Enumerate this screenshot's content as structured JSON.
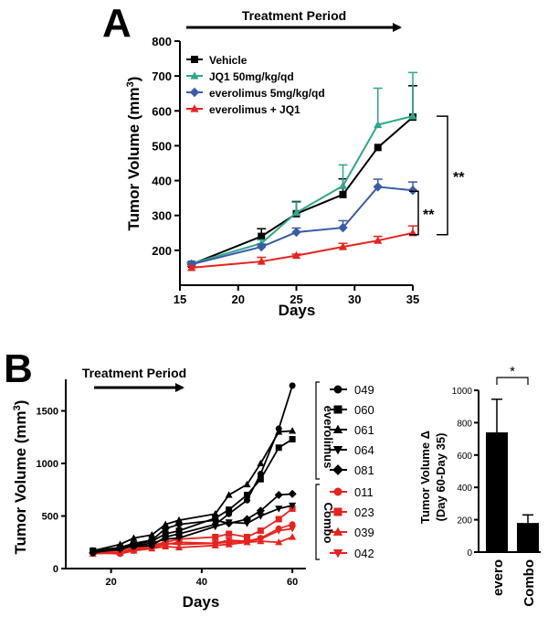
{
  "panel_labels": {
    "a": "A",
    "b": "B"
  },
  "colors": {
    "vehicle": "#000000",
    "jq1": "#2ea88a",
    "everolimus": "#3a5ca8",
    "combo": "#e8231e"
  },
  "chart_data": [
    {
      "type": "line",
      "panel": "A",
      "title": "",
      "arrow_label": "Treatment Period",
      "xlabel": "Days",
      "ylabel_main": "Tumor Volume (mm",
      "ylabel_sup": "3",
      "ylabel_tail": ")",
      "xlim": [
        15,
        35
      ],
      "ylim": [
        100,
        800
      ],
      "xticks": [
        15,
        20,
        25,
        30,
        35
      ],
      "yticks": [
        200,
        300,
        400,
        500,
        600,
        700,
        800
      ],
      "x": [
        16,
        22,
        25,
        29,
        32,
        35
      ],
      "series": [
        {
          "name": "Vehicle",
          "color": "#000000",
          "marker": "square",
          "values": [
            160,
            240,
            305,
            360,
            495,
            582
          ],
          "errors": [
            5,
            22,
            35,
            45,
            0,
            90
          ]
        },
        {
          "name": "JQ1 50mg/kg/qd",
          "color": "#2ea88a",
          "marker": "triangle",
          "values": [
            162,
            220,
            308,
            385,
            560,
            585
          ],
          "errors": [
            5,
            10,
            30,
            60,
            105,
            125
          ]
        },
        {
          "name": "everolimus 5mg/kg/qd",
          "color": "#3a5ca8",
          "marker": "diamond",
          "values": [
            160,
            210,
            252,
            265,
            382,
            372
          ],
          "errors": [
            4,
            8,
            12,
            20,
            22,
            24
          ]
        },
        {
          "name": "everolimus + JQ1",
          "color": "#e8231e",
          "marker": "triangle",
          "values": [
            150,
            168,
            185,
            210,
            228,
            250
          ],
          "errors": [
            4,
            12,
            4,
            10,
            12,
            20
          ]
        }
      ],
      "legend": "top-left",
      "significance": [
        {
          "label": "**",
          "from": 582,
          "to": 250
        },
        {
          "label": "**",
          "from": 372,
          "to": 250
        }
      ]
    },
    {
      "type": "line",
      "panel": "B",
      "title": "",
      "arrow_label": "Treatment Period",
      "xlabel": "Days",
      "ylabel_main": "Tumor Volume (mm",
      "ylabel_sup": "3",
      "ylabel_tail": ")",
      "xlim": [
        10,
        63
      ],
      "ylim": [
        0,
        1800
      ],
      "xticks": [
        20,
        40,
        60
      ],
      "yticks": [
        0,
        500,
        1000,
        1500
      ],
      "x": [
        16,
        22,
        25,
        29,
        32,
        35,
        43,
        46,
        50,
        53,
        57,
        60
      ],
      "series": [
        {
          "name": "049",
          "group": "everolimus",
          "color": "#000000",
          "marker": "circle",
          "values": [
            150,
            190,
            210,
            220,
            300,
            330,
            420,
            520,
            650,
            900,
            1330,
            1740
          ]
        },
        {
          "name": "060",
          "group": "everolimus",
          "color": "#000000",
          "marker": "square",
          "values": [
            170,
            200,
            230,
            260,
            330,
            360,
            480,
            560,
            700,
            850,
            1150,
            1230
          ]
        },
        {
          "name": "061",
          "group": "everolimus",
          "color": "#000000",
          "marker": "triangle",
          "values": [
            170,
            230,
            290,
            320,
            420,
            460,
            520,
            700,
            800,
            1000,
            1300,
            1310
          ]
        },
        {
          "name": "064",
          "group": "everolimus",
          "color": "#000000",
          "marker": "triangle-down",
          "values": [
            160,
            180,
            220,
            240,
            280,
            290,
            400,
            440,
            430,
            500,
            570,
            600
          ]
        },
        {
          "name": "081",
          "group": "everolimus",
          "color": "#000000",
          "marker": "diamond",
          "values": [
            150,
            200,
            240,
            270,
            380,
            420,
            460,
            430,
            470,
            550,
            700,
            710
          ]
        },
        {
          "name": "011",
          "group": "Combo",
          "color": "#e8231e",
          "marker": "circle",
          "values": [
            150,
            140,
            170,
            200,
            230,
            250,
            240,
            250,
            260,
            290,
            380,
            420
          ]
        },
        {
          "name": "023",
          "group": "Combo",
          "color": "#e8231e",
          "marker": "square",
          "values": [
            160,
            170,
            190,
            220,
            250,
            280,
            300,
            330,
            300,
            360,
            470,
            570
          ]
        },
        {
          "name": "039",
          "group": "Combo",
          "color": "#e8231e",
          "marker": "triangle",
          "values": [
            140,
            150,
            170,
            190,
            210,
            200,
            220,
            230,
            250,
            260,
            250,
            300
          ]
        },
        {
          "name": "042",
          "group": "Combo",
          "color": "#e8231e",
          "marker": "triangle-down",
          "values": [
            160,
            150,
            180,
            220,
            240,
            230,
            240,
            270,
            260,
            280,
            360,
            380
          ]
        }
      ],
      "legend": "right",
      "legend_groups": [
        "everolimus",
        "Combo"
      ]
    },
    {
      "type": "bar",
      "panel": "B",
      "title": "",
      "categories": [
        "evero",
        "Combo"
      ],
      "values": [
        740,
        180
      ],
      "errors": [
        205,
        50
      ],
      "ylabel_line1": "Tumor Volume ",
      "ylabel_delta": "Δ",
      "ylabel_line2": "(Day 60-Day 35)",
      "ylim": [
        0,
        1000
      ],
      "yticks": [
        0,
        200,
        400,
        600,
        800,
        1000
      ],
      "significance": "*"
    }
  ]
}
